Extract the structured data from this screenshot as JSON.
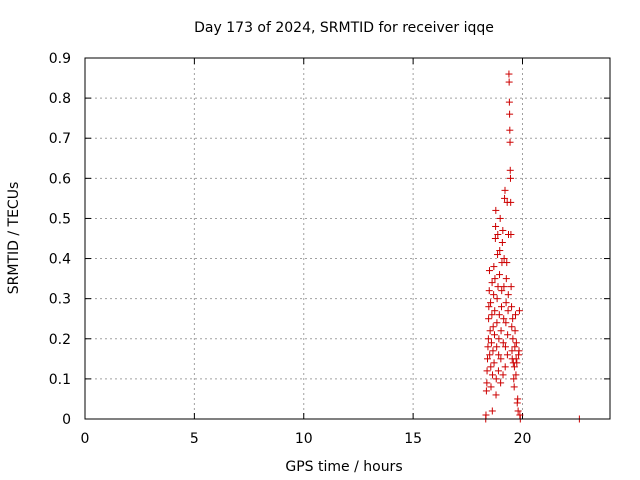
{
  "chart_data": {
    "type": "scatter",
    "title": "Day 173 of 2024, SRMTID for receiver iqqe",
    "xlabel": "GPS time / hours",
    "ylabel": "SRMTID / TECUs",
    "xlim": [
      0,
      24
    ],
    "ylim": [
      0,
      0.9
    ],
    "xticks": [
      0,
      5,
      10,
      15,
      20
    ],
    "yticks": [
      0,
      0.1,
      0.2,
      0.3,
      0.4,
      0.5,
      0.6,
      0.7,
      0.8,
      0.9
    ],
    "grid": true,
    "marker": "+",
    "series": [
      {
        "color": "#cc0000",
        "points": [
          [
            18.32,
            0.0
          ],
          [
            18.33,
            0.01
          ],
          [
            18.35,
            0.07
          ],
          [
            18.37,
            0.09
          ],
          [
            18.38,
            0.12
          ],
          [
            18.4,
            0.15
          ],
          [
            18.42,
            0.18
          ],
          [
            18.44,
            0.2
          ],
          [
            18.45,
            0.25
          ],
          [
            18.46,
            0.28
          ],
          [
            18.48,
            0.32
          ],
          [
            18.49,
            0.37
          ],
          [
            18.5,
            0.16
          ],
          [
            18.52,
            0.22
          ],
          [
            18.54,
            0.29
          ],
          [
            18.55,
            0.13
          ],
          [
            18.56,
            0.08
          ],
          [
            18.58,
            0.19
          ],
          [
            18.6,
            0.26
          ],
          [
            18.61,
            0.34
          ],
          [
            18.62,
            0.02
          ],
          [
            18.63,
            0.11
          ],
          [
            18.65,
            0.17
          ],
          [
            18.66,
            0.23
          ],
          [
            18.68,
            0.31
          ],
          [
            18.69,
            0.38
          ],
          [
            18.7,
            0.14
          ],
          [
            18.72,
            0.21
          ],
          [
            18.73,
            0.27
          ],
          [
            18.74,
            0.35
          ],
          [
            18.76,
            0.45
          ],
          [
            18.77,
            0.48
          ],
          [
            18.78,
            0.52
          ],
          [
            18.79,
            0.06
          ],
          [
            18.8,
            0.1
          ],
          [
            18.82,
            0.18
          ],
          [
            18.83,
            0.24
          ],
          [
            18.84,
            0.3
          ],
          [
            18.86,
            0.41
          ],
          [
            18.87,
            0.46
          ],
          [
            18.88,
            0.33
          ],
          [
            18.9,
            0.12
          ],
          [
            18.91,
            0.16
          ],
          [
            18.92,
            0.2
          ],
          [
            18.94,
            0.26
          ],
          [
            18.95,
            0.36
          ],
          [
            18.96,
            0.42
          ],
          [
            18.98,
            0.5
          ],
          [
            19.0,
            0.09
          ],
          [
            19.01,
            0.15
          ],
          [
            19.02,
            0.22
          ],
          [
            19.04,
            0.28
          ],
          [
            19.05,
            0.32
          ],
          [
            19.06,
            0.39
          ],
          [
            19.08,
            0.44
          ],
          [
            19.1,
            0.47
          ],
          [
            19.11,
            0.11
          ],
          [
            19.12,
            0.19
          ],
          [
            19.14,
            0.25
          ],
          [
            19.15,
            0.33
          ],
          [
            19.16,
            0.4
          ],
          [
            19.18,
            0.55
          ],
          [
            19.2,
            0.57
          ],
          [
            19.21,
            0.13
          ],
          [
            19.22,
            0.18
          ],
          [
            19.24,
            0.24
          ],
          [
            19.25,
            0.29
          ],
          [
            19.26,
            0.35
          ],
          [
            19.28,
            0.39
          ],
          [
            19.3,
            0.54
          ],
          [
            19.31,
            0.16
          ],
          [
            19.32,
            0.21
          ],
          [
            19.34,
            0.27
          ],
          [
            19.35,
            0.31
          ],
          [
            19.36,
            0.46
          ],
          [
            19.38,
            0.86
          ],
          [
            19.39,
            0.84
          ],
          [
            19.4,
            0.79
          ],
          [
            19.41,
            0.76
          ],
          [
            19.42,
            0.72
          ],
          [
            19.43,
            0.69
          ],
          [
            19.44,
            0.62
          ],
          [
            19.45,
            0.6
          ],
          [
            19.46,
            0.54
          ],
          [
            19.47,
            0.46
          ],
          [
            19.48,
            0.33
          ],
          [
            19.5,
            0.28
          ],
          [
            19.51,
            0.23
          ],
          [
            19.52,
            0.17
          ],
          [
            19.53,
            0.15
          ],
          [
            19.55,
            0.25
          ],
          [
            19.56,
            0.2
          ],
          [
            19.58,
            0.14
          ],
          [
            19.6,
            0.1
          ],
          [
            19.62,
            0.08
          ],
          [
            19.63,
            0.13
          ],
          [
            19.65,
            0.18
          ],
          [
            19.66,
            0.22
          ],
          [
            19.68,
            0.26
          ],
          [
            19.7,
            0.11
          ],
          [
            19.71,
            0.15
          ],
          [
            19.72,
            0.19
          ],
          [
            19.74,
            0.14
          ],
          [
            19.76,
            0.04
          ],
          [
            19.78,
            0.05
          ],
          [
            19.8,
            0.02
          ],
          [
            19.82,
            0.16
          ],
          [
            19.84,
            0.17
          ],
          [
            19.86,
            0.27
          ],
          [
            19.88,
            0.01
          ],
          [
            19.9,
            0.0
          ],
          [
            22.6,
            0.0
          ]
        ]
      }
    ]
  }
}
